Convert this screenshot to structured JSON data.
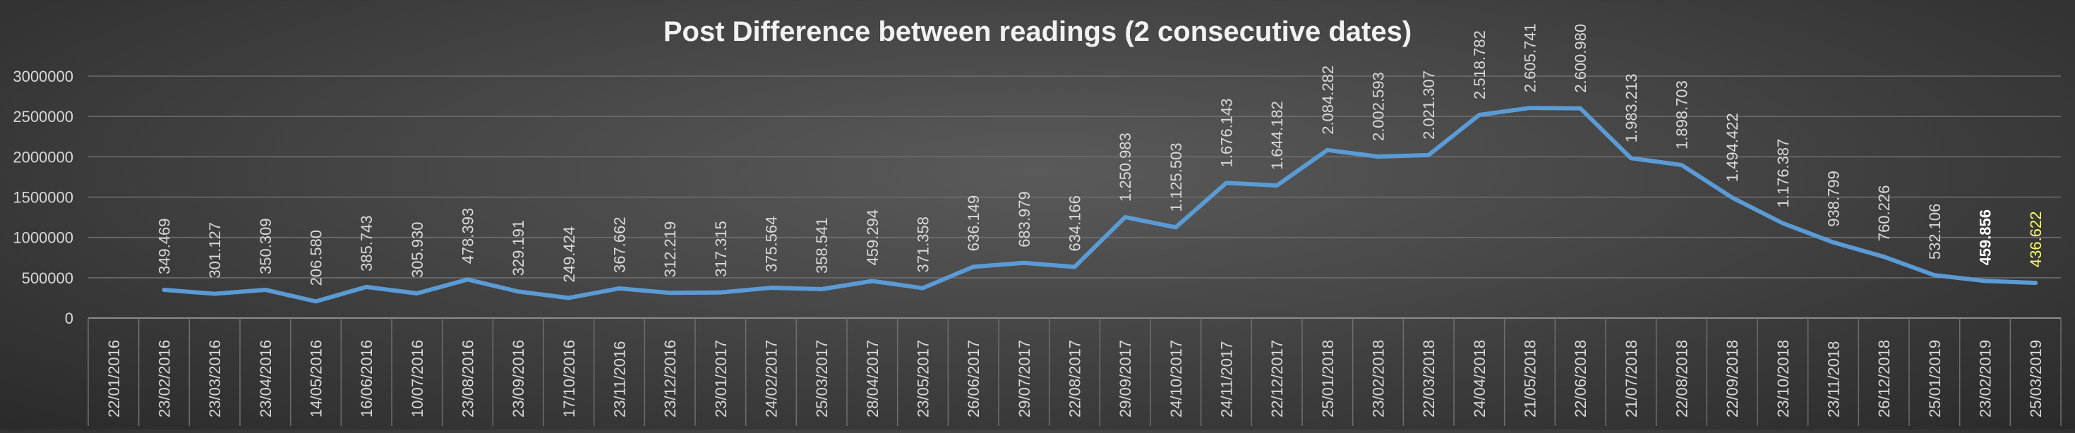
{
  "chart_data": {
    "type": "line",
    "title": "Post Difference between readings (2 consecutive dates)",
    "xlabel": "",
    "ylabel": "",
    "ylim": [
      0,
      3000000
    ],
    "yticks": [
      0,
      500000,
      1000000,
      1500000,
      2000000,
      2500000,
      3000000
    ],
    "grid": true,
    "legend": "none",
    "colors": {
      "line": "#5b9bd5",
      "text": "#d9d9d9",
      "grid": "#6f6f6f",
      "axis": "#8c8c8c",
      "highlight_label": "#ffff66",
      "bold_label": "#ffffff"
    },
    "categories": [
      "22/01/2016",
      "23/02/2016",
      "23/03/2016",
      "23/04/2016",
      "14/05/2016",
      "16/06/2016",
      "10/07/2016",
      "23/08/2016",
      "23/09/2016",
      "17/10/2016",
      "23/11/2016",
      "23/12/2016",
      "23/01/2017",
      "24/02/2017",
      "25/03/2017",
      "28/04/2017",
      "23/05/2017",
      "26/06/2017",
      "29/07/2017",
      "22/08/2017",
      "29/09/2017",
      "24/10/2017",
      "24/11/2017",
      "22/12/2017",
      "25/01/2018",
      "23/02/2018",
      "22/03/2018",
      "24/04/2018",
      "21/05/2018",
      "22/06/2018",
      "21/07/2018",
      "22/08/2018",
      "22/09/2018",
      "23/10/2018",
      "23/11/2018",
      "26/12/2018",
      "25/01/2019",
      "23/02/2019",
      "25/03/2019"
    ],
    "series": [
      {
        "values": [
          null,
          349469,
          301127,
          350309,
          206580,
          385743,
          305930,
          478393,
          329191,
          249424,
          367662,
          312219,
          317315,
          375564,
          358541,
          459294,
          371358,
          636149,
          683979,
          634166,
          1250983,
          1125503,
          1676143,
          1644182,
          2084282,
          2002593,
          2021307,
          2518782,
          2605741,
          2600980,
          1983213,
          1898703,
          1494422,
          1176387,
          938799,
          760226,
          532106,
          459856,
          436622
        ],
        "data_labels": [
          "",
          "349.469",
          "301.127",
          "350.309",
          "206.580",
          "385.743",
          "305.930",
          "478.393",
          "329.191",
          "249.424",
          "367.662",
          "312.219",
          "317.315",
          "375.564",
          "358.541",
          "459.294",
          "371.358",
          "636.149",
          "683.979",
          "634.166",
          "1.250.983",
          "1.125.503",
          "1.676.143",
          "1.644.182",
          "2.084.282",
          "2.002.593",
          "2.021.307",
          "2.518.782",
          "2.605.741",
          "2.600.980",
          "1.983.213",
          "1.898.703",
          "1.494.422",
          "1.176.387",
          "938.799",
          "760.226",
          "532.106",
          "459.856",
          "436.622"
        ]
      }
    ]
  }
}
